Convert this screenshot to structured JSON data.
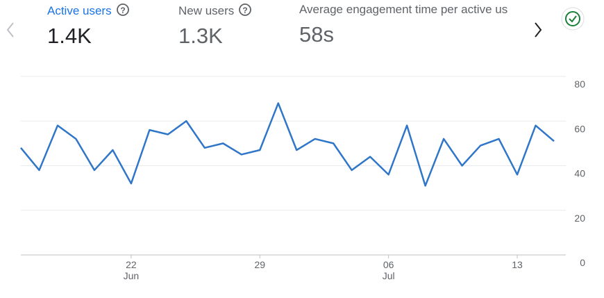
{
  "metrics": [
    {
      "label": "Active users",
      "value": "1.4K"
    },
    {
      "label": "New users",
      "value": "1.3K"
    },
    {
      "label": "Average engagement time per active us",
      "value": "58s"
    }
  ],
  "chart_data": {
    "type": "line",
    "categories": [
      null,
      null,
      null,
      null,
      null,
      null,
      "22",
      null,
      null,
      null,
      null,
      null,
      null,
      "29",
      null,
      null,
      null,
      null,
      null,
      null,
      "06",
      null,
      null,
      null,
      null,
      null,
      null,
      "13",
      null,
      null
    ],
    "category_sublabels": [
      null,
      null,
      null,
      null,
      null,
      null,
      "Jun",
      null,
      null,
      null,
      null,
      null,
      null,
      null,
      null,
      null,
      null,
      null,
      null,
      null,
      "Jul",
      null,
      null,
      null,
      null,
      null,
      null,
      null,
      null,
      null
    ],
    "values": [
      48,
      38,
      58,
      52,
      38,
      47,
      32,
      56,
      54,
      60,
      48,
      50,
      45,
      47,
      68,
      47,
      52,
      50,
      38,
      44,
      36,
      58,
      31,
      52,
      40,
      49,
      52,
      36,
      58,
      51
    ],
    "color": "#2f76c8",
    "ylim": [
      0,
      80
    ],
    "yticks": [
      0,
      20,
      40,
      60,
      80
    ],
    "grid": true
  }
}
